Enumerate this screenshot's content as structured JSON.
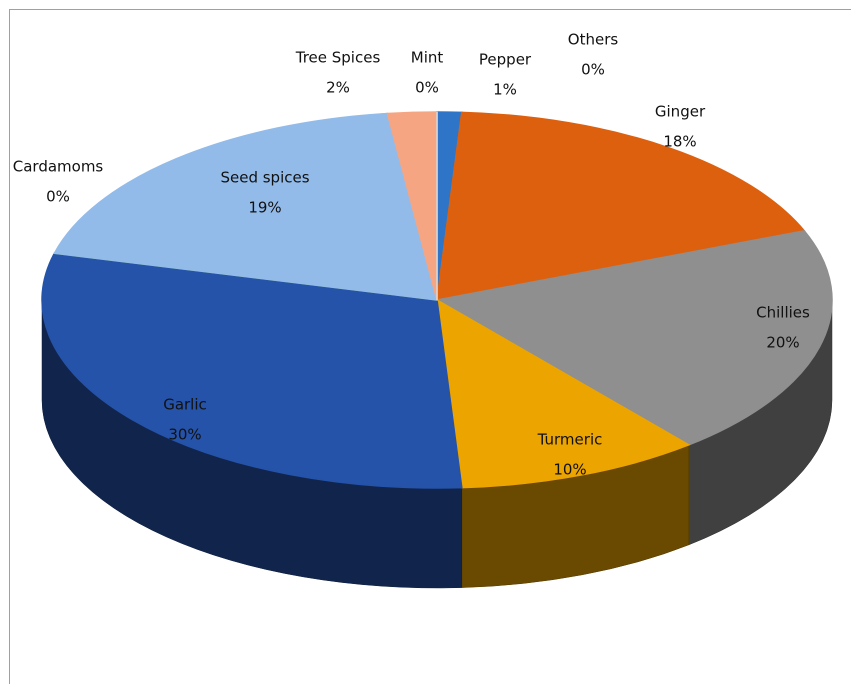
{
  "chart_data": {
    "type": "pie3d",
    "categories": [
      "Pepper",
      "Others",
      "Ginger",
      "Chillies",
      "Turmeric",
      "Garlic",
      "Cardamoms",
      "Seed spices",
      "Tree Spices",
      "Mint"
    ],
    "values": [
      1,
      0,
      18,
      20,
      10,
      30,
      0,
      19,
      2,
      0
    ],
    "value_labels": [
      "1%",
      "0%",
      "18%",
      "20%",
      "10%",
      "30%",
      "0%",
      "19%",
      "2%",
      "0%"
    ],
    "colors": [
      "#2e75c8",
      "#7f7f7f",
      "#dd600f",
      "#8f8f8f",
      "#eca400",
      "#2553a9",
      "#4f9a2c",
      "#93bbe9",
      "#f6a582",
      "#d8d8d8"
    ]
  }
}
